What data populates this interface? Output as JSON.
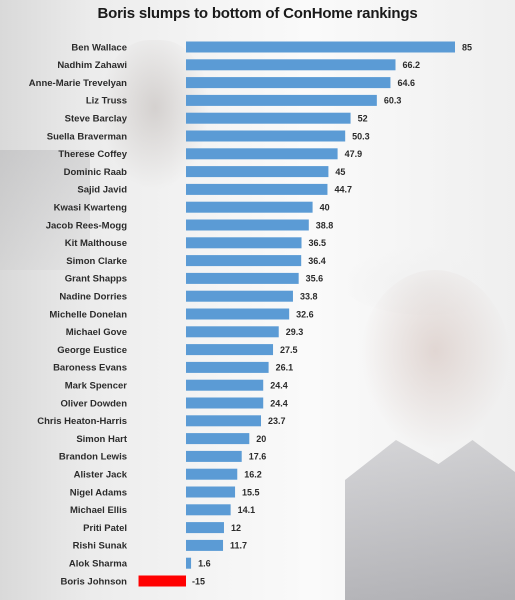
{
  "chart_data": {
    "type": "bar",
    "orientation": "horizontal",
    "title": "Boris slumps to bottom of ConHome rankings",
    "categories": [
      "Ben Wallace",
      "Nadhim Zahawi",
      "Anne-Marie Trevelyan",
      "Liz Truss",
      "Steve Barclay",
      "Suella Braverman",
      "Therese Coffey",
      "Dominic Raab",
      "Sajid Javid",
      "Kwasi Kwarteng",
      "Jacob Rees-Mogg",
      "Kit Malthouse",
      "Simon Clarke",
      "Grant Shapps",
      "Nadine Dorries",
      "Michelle Donelan",
      "Michael Gove",
      "George Eustice",
      "Baroness Evans",
      "Mark Spencer",
      "Oliver Dowden",
      "Chris Heaton-Harris",
      "Simon Hart",
      "Brandon Lewis",
      "Alister Jack",
      "Nigel Adams",
      "Michael Ellis",
      "Priti Patel",
      "Rishi Sunak",
      "Alok Sharma",
      "Boris Johnson"
    ],
    "values": [
      85,
      66.2,
      64.6,
      60.3,
      52,
      50.3,
      47.9,
      45,
      44.7,
      40,
      38.8,
      36.5,
      36.4,
      35.6,
      33.8,
      32.6,
      29.3,
      27.5,
      26.1,
      24.4,
      24.4,
      23.7,
      20,
      17.6,
      16.2,
      15.5,
      14.1,
      12,
      11.7,
      1.6,
      -15
    ],
    "value_labels": [
      "85",
      "66.2",
      "64.6",
      "60.3",
      "52",
      "50.3",
      "47.9",
      "45",
      "44.7",
      "40",
      "38.8",
      "36.5",
      "36.4",
      "35.6",
      "33.8",
      "32.6",
      "29.3",
      "27.5",
      "26.1",
      "24.4",
      "24.4",
      "23.7",
      "20",
      "17.6",
      "16.2",
      "15.5",
      "14.1",
      "12",
      "11.7",
      "1.6",
      "-15"
    ],
    "xlim": [
      -15,
      85
    ],
    "grid": false,
    "colors": {
      "positive": "#5b9bd5",
      "negative": "#ff0000",
      "text": "#2b2b2b"
    }
  }
}
